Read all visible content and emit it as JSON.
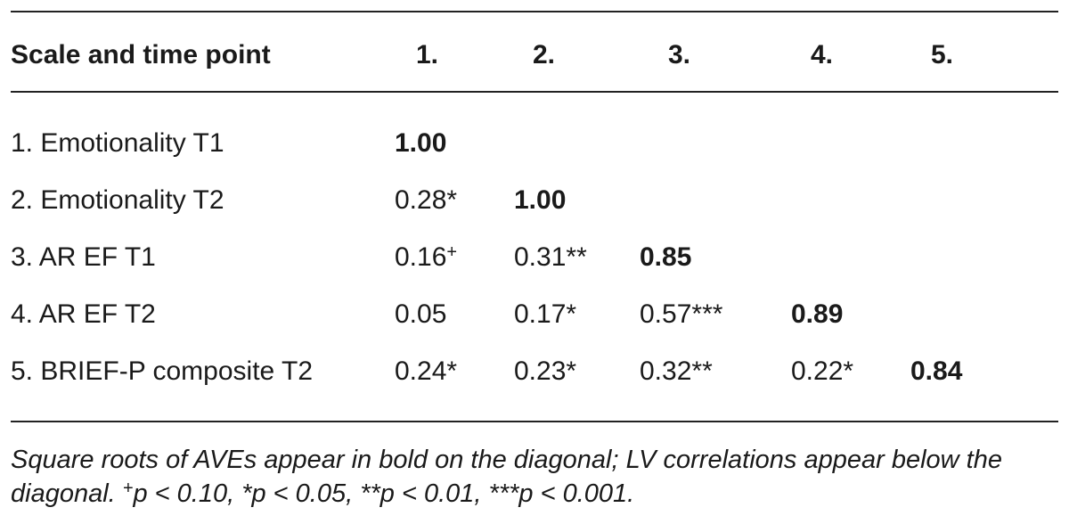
{
  "table": {
    "header": [
      "Scale and time point",
      "1.",
      "2.",
      "3.",
      "4.",
      "5."
    ],
    "rows": [
      [
        "1. Emotionality T1",
        "1.00"
      ],
      [
        "2. Emotionality T2",
        "0.28*",
        "1.00"
      ],
      [
        "3. AR EF T1",
        {
          "text": "0.16",
          "sup": "+"
        },
        "0.31**",
        "0.85"
      ],
      [
        "4. AR EF T2",
        "0.05",
        "0.17*",
        "0.57***",
        "0.89"
      ],
      [
        "5. BRIEF-P composite T2",
        "0.24*",
        "0.23*",
        "0.32**",
        "0.22*",
        "0.84"
      ]
    ]
  },
  "note": {
    "text": "Square roots of AVEs appear in bold on the diagonal; LV correlations appear below the diagonal.",
    "sup": "+",
    "rest": "p < 0.10, *p < 0.05, **p < 0.01, ***p < 0.001."
  }
}
